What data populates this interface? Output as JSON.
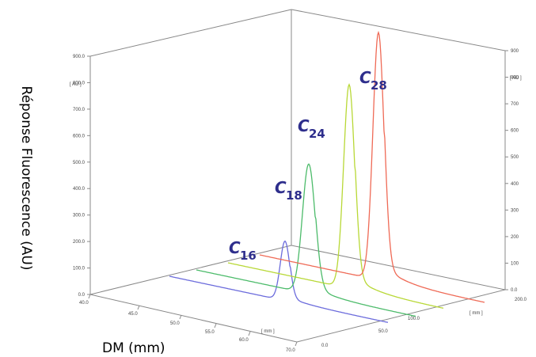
{
  "chart_data": {
    "type": "line",
    "view": "3d-waterfall",
    "ylabel": "Réponse Fluorescence (AU)",
    "xlabel": "DM (mm)",
    "y_unit_label": "[ AU ]",
    "x_unit_label": "[ mm ]",
    "depth_unit_label": "[ mm ]",
    "ylim": [
      0,
      900
    ],
    "y_ticks_left": [
      "0.0",
      "100.0",
      "200.0",
      "300.0",
      "400.0",
      "500.0",
      "600.0",
      "700.0",
      "800.0",
      "900.0"
    ],
    "y_ticks_right": [
      "0.0",
      "100",
      "200",
      "300",
      "400",
      "500",
      "600",
      "700",
      "800",
      "900"
    ],
    "xlim": [
      40,
      70
    ],
    "x_ticks": [
      "40.0",
      "45.0",
      "50.0",
      "55.0",
      "60.0",
      "70.0"
    ],
    "depth_ticks": [
      "0.0",
      "50.0",
      "100.0",
      "200.0"
    ],
    "series": [
      {
        "name": "C",
        "subscript": "16",
        "color": "#6b6bdc",
        "peak_x": 57.5,
        "peak_y": 225
      },
      {
        "name": "C",
        "subscript": "18",
        "color": "#4cbb6a",
        "peak_x": 58.6,
        "peak_y": 490
      },
      {
        "name": "C",
        "subscript": "24",
        "color": "#b8d836",
        "peak_x": 59.7,
        "peak_y": 770
      },
      {
        "name": "C",
        "subscript": "28",
        "color": "#ef6a56",
        "peak_x": 60.8,
        "peak_y": 935
      }
    ]
  }
}
